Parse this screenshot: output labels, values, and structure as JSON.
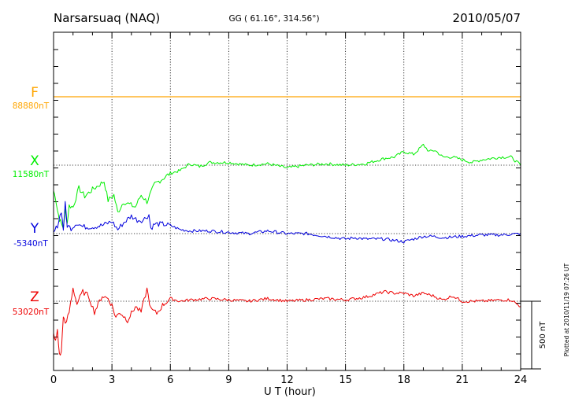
{
  "chart_data": {
    "type": "line",
    "title": "Narsarsuaq (NAQ)",
    "subtitle": "GG ( 61.16°, 314.56°)",
    "date": "2010/05/07",
    "xlabel": "U T (hour)",
    "x_ticks": [
      "0",
      "3",
      "6",
      "9",
      "12",
      "15",
      "18",
      "21",
      "24"
    ],
    "xlim": [
      0,
      24
    ],
    "grid": true,
    "scale_bar_label": "500 nT",
    "side_note": "Plotted at 2010/11/19 07:26 UT",
    "series": [
      {
        "name": "F",
        "baseline_label": "88880nT",
        "color": "#ffa500",
        "x": [
          0,
          24
        ],
        "offset_nT": [
          0,
          0
        ]
      },
      {
        "name": "X",
        "baseline_label": "11580nT",
        "color": "#00ee00",
        "x": [
          0,
          0.1,
          0.2,
          0.3,
          0.4,
          0.5,
          0.6,
          0.7,
          0.8,
          1.0,
          1.3,
          1.6,
          2.0,
          2.3,
          2.6,
          2.8,
          3.1,
          3.3,
          3.6,
          3.9,
          4.2,
          4.5,
          4.8,
          5.2,
          5.6,
          6.0,
          6.5,
          7.0,
          7.5,
          8.0,
          9.0,
          10.0,
          11.0,
          12.0,
          13.0,
          14.0,
          15.0,
          16.0,
          17.0,
          17.5,
          18.0,
          18.5,
          19.0,
          19.3,
          19.6,
          20.0,
          20.5,
          21.0,
          21.5,
          22.0,
          22.5,
          23.0,
          23.5,
          24.0
        ],
        "offset_nT": [
          -190,
          -240,
          -330,
          -400,
          -430,
          -460,
          -330,
          -430,
          -300,
          -310,
          -170,
          -230,
          -180,
          -150,
          -120,
          -260,
          -220,
          -350,
          -270,
          -290,
          -310,
          -220,
          -270,
          -140,
          -100,
          -60,
          -40,
          10,
          -10,
          20,
          20,
          0,
          10,
          -20,
          0,
          10,
          0,
          10,
          50,
          60,
          100,
          80,
          150,
          100,
          110,
          60,
          60,
          40,
          20,
          40,
          50,
          60,
          60,
          0
        ]
      },
      {
        "name": "Y",
        "baseline_label": "-5340nT",
        "color": "#0000dd",
        "x": [
          0,
          0.2,
          0.4,
          0.5,
          0.6,
          0.7,
          0.9,
          1.2,
          1.5,
          2.0,
          2.5,
          3.0,
          3.3,
          3.6,
          4.0,
          4.3,
          4.6,
          4.9,
          5.0,
          5.2,
          5.6,
          6.0,
          6.5,
          7.0,
          8.0,
          9.0,
          10.0,
          11.0,
          12.0,
          13.0,
          14.0,
          15.0,
          15.5,
          16.0,
          17.0,
          18.0,
          18.5,
          19.0,
          19.5,
          20.0,
          21.0,
          22.0,
          23.0,
          24.0
        ],
        "offset_nT": [
          0,
          60,
          170,
          30,
          220,
          60,
          40,
          80,
          50,
          50,
          60,
          90,
          30,
          80,
          130,
          100,
          100,
          140,
          40,
          70,
          70,
          60,
          30,
          20,
          20,
          10,
          0,
          20,
          0,
          0,
          -20,
          -40,
          -30,
          -40,
          -40,
          -60,
          -40,
          -20,
          -20,
          -30,
          -20,
          -10,
          -10,
          0
        ]
      },
      {
        "name": "Z",
        "baseline_label": "53020nT",
        "color": "#ee0000",
        "x": [
          0,
          0.1,
          0.2,
          0.3,
          0.4,
          0.5,
          0.6,
          0.8,
          1.0,
          1.2,
          1.5,
          1.8,
          2.1,
          2.5,
          2.8,
          3.0,
          3.2,
          3.4,
          3.8,
          4.2,
          4.5,
          4.8,
          5.0,
          5.3,
          5.6,
          6.0,
          6.5,
          7.0,
          8.0,
          9.0,
          10.0,
          11.0,
          12.0,
          13.0,
          14.0,
          15.0,
          16.0,
          17.0,
          17.5,
          18.0,
          18.5,
          19.0,
          19.5,
          20.0,
          20.5,
          21.0,
          22.0,
          23.0,
          23.5,
          24.0
        ],
        "offset_nT": [
          -250,
          -300,
          -210,
          -400,
          -380,
          -100,
          -180,
          -80,
          100,
          -20,
          70,
          40,
          -80,
          40,
          20,
          -30,
          -120,
          -80,
          -140,
          -40,
          -80,
          90,
          -60,
          -90,
          -30,
          20,
          0,
          10,
          20,
          10,
          0,
          20,
          0,
          10,
          20,
          10,
          30,
          70,
          60,
          60,
          40,
          60,
          40,
          10,
          40,
          0,
          0,
          10,
          10,
          -40
        ]
      }
    ]
  }
}
